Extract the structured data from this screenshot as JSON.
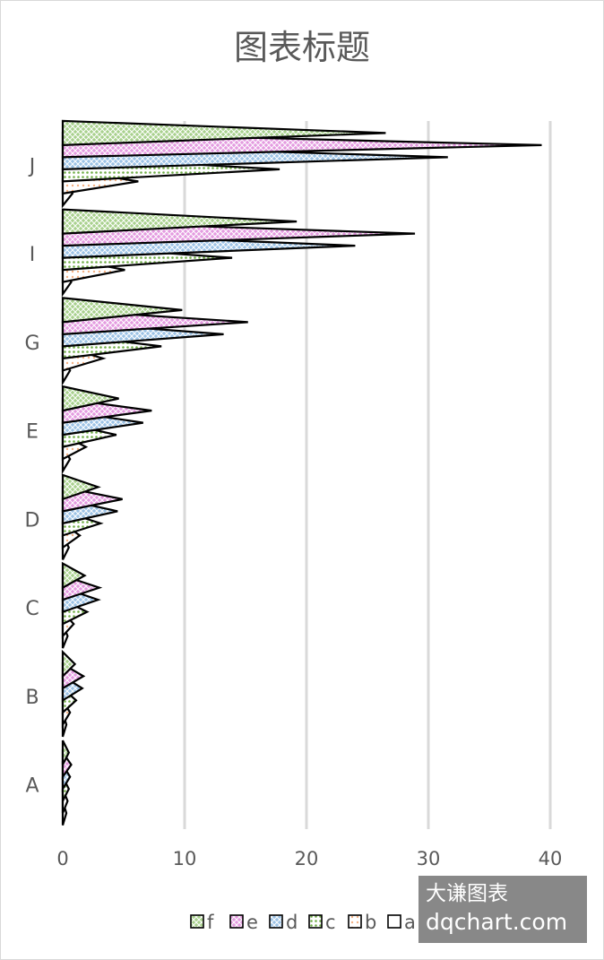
{
  "chart_data": {
    "type": "bar",
    "title": "图表标题",
    "orientation": "horizontal",
    "categories": [
      "A",
      "B",
      "C",
      "D",
      "E",
      "G",
      "I",
      "J"
    ],
    "series": [
      {
        "name": "a",
        "values": [
          0.3,
          0.3,
          0.4,
          0.5,
          0.6,
          0.6,
          0.7,
          0.8
        ],
        "color": "#ffffff",
        "pattern": "none"
      },
      {
        "name": "b",
        "values": [
          0.4,
          0.6,
          0.9,
          1.4,
          1.9,
          3.3,
          5.1,
          6.2
        ],
        "color": "#f8cbad",
        "pattern": "dots"
      },
      {
        "name": "c",
        "values": [
          0.5,
          1.1,
          2.0,
          3.1,
          4.4,
          8.1,
          13.9,
          17.8
        ],
        "color": "#a9d18e",
        "pattern": "dots"
      },
      {
        "name": "d",
        "values": [
          0.6,
          1.6,
          2.9,
          4.5,
          6.6,
          13.2,
          24.0,
          31.6
        ],
        "color": "#9dc3e6",
        "pattern": "cross"
      },
      {
        "name": "e",
        "values": [
          0.7,
          1.7,
          3.0,
          4.9,
          7.3,
          15.2,
          28.9,
          39.3
        ],
        "color": "#e49be0",
        "pattern": "cross"
      },
      {
        "name": "f",
        "values": [
          0.5,
          1.0,
          1.8,
          2.9,
          4.6,
          9.8,
          19.2,
          26.5
        ],
        "color": "#a9d18e",
        "pattern": "cross"
      }
    ],
    "xlim": [
      0,
      40
    ],
    "x_ticks": [
      "0",
      "10",
      "20",
      "30",
      "40"
    ],
    "grid": true,
    "legend": {
      "position": "bottom",
      "entries": [
        "f",
        "e",
        "d",
        "c",
        "b",
        "a"
      ]
    }
  },
  "watermark": {
    "line1": "大谦图表",
    "line2": "dqchart.com"
  }
}
